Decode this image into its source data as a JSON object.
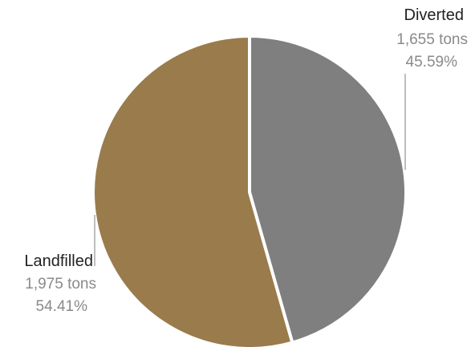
{
  "chart_data": {
    "type": "pie",
    "title": "",
    "unit": "tons",
    "slices": [
      {
        "label": "Diverted",
        "value": 1655,
        "value_text": "1,655 tons",
        "percent_text": "45.59%",
        "color": "#7f7f7f"
      },
      {
        "label": "Landfilled",
        "value": 1975,
        "value_text": "1,975 tons",
        "percent_text": "54.41%",
        "color": "#9a7b4b"
      }
    ],
    "start_angle": "12 o'clock",
    "direction": "clockwise",
    "legend": "none"
  }
}
